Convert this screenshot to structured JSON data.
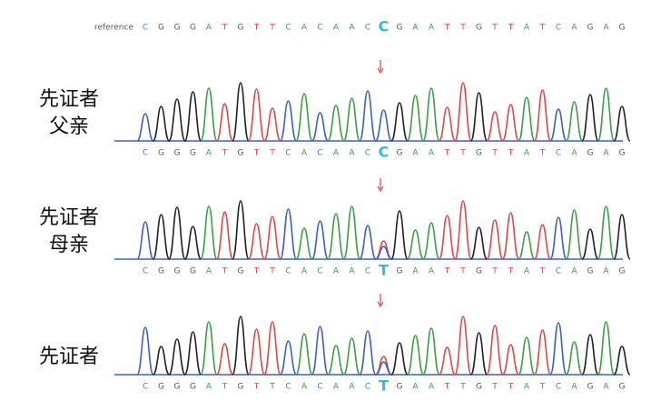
{
  "reference": {
    "label": "reference",
    "bases": [
      "C",
      "G",
      "G",
      "G",
      "A",
      "T",
      "G",
      "T",
      "T",
      "C",
      "A",
      "C",
      "A",
      "A",
      "C",
      "C",
      "G",
      "A",
      "A",
      "T",
      "T",
      "G",
      "T",
      "T",
      "A",
      "T",
      "C",
      "A",
      "G",
      "A",
      "G"
    ]
  },
  "panels": [
    {
      "label_lines": [
        "先证者",
        "父亲"
      ],
      "bases": [
        "C",
        "G",
        "G",
        "G",
        "A",
        "T",
        "G",
        "T",
        "T",
        "C",
        "A",
        "C",
        "A",
        "A",
        "C",
        "C",
        "G",
        "A",
        "A",
        "T",
        "T",
        "G",
        "T",
        "T",
        "A",
        "T",
        "C",
        "A",
        "G",
        "A",
        "G"
      ]
    },
    {
      "label_lines": [
        "先证者",
        "母亲"
      ],
      "bases": [
        "C",
        "G",
        "G",
        "G",
        "A",
        "T",
        "G",
        "T",
        "T",
        "C",
        "A",
        "C",
        "A",
        "A",
        "C",
        "T",
        "G",
        "A",
        "A",
        "T",
        "T",
        "G",
        "T",
        "T",
        "A",
        "T",
        "C",
        "A",
        "G",
        "A",
        "G"
      ]
    },
    {
      "label_lines": [
        "先证者"
      ],
      "bases": [
        "C",
        "G",
        "G",
        "G",
        "A",
        "T",
        "G",
        "T",
        "T",
        "C",
        "A",
        "C",
        "A",
        "A",
        "C",
        "T",
        "G",
        "A",
        "A",
        "T",
        "T",
        "G",
        "T",
        "T",
        "A",
        "T",
        "C",
        "A",
        "G",
        "A",
        "G"
      ]
    }
  ]
}
